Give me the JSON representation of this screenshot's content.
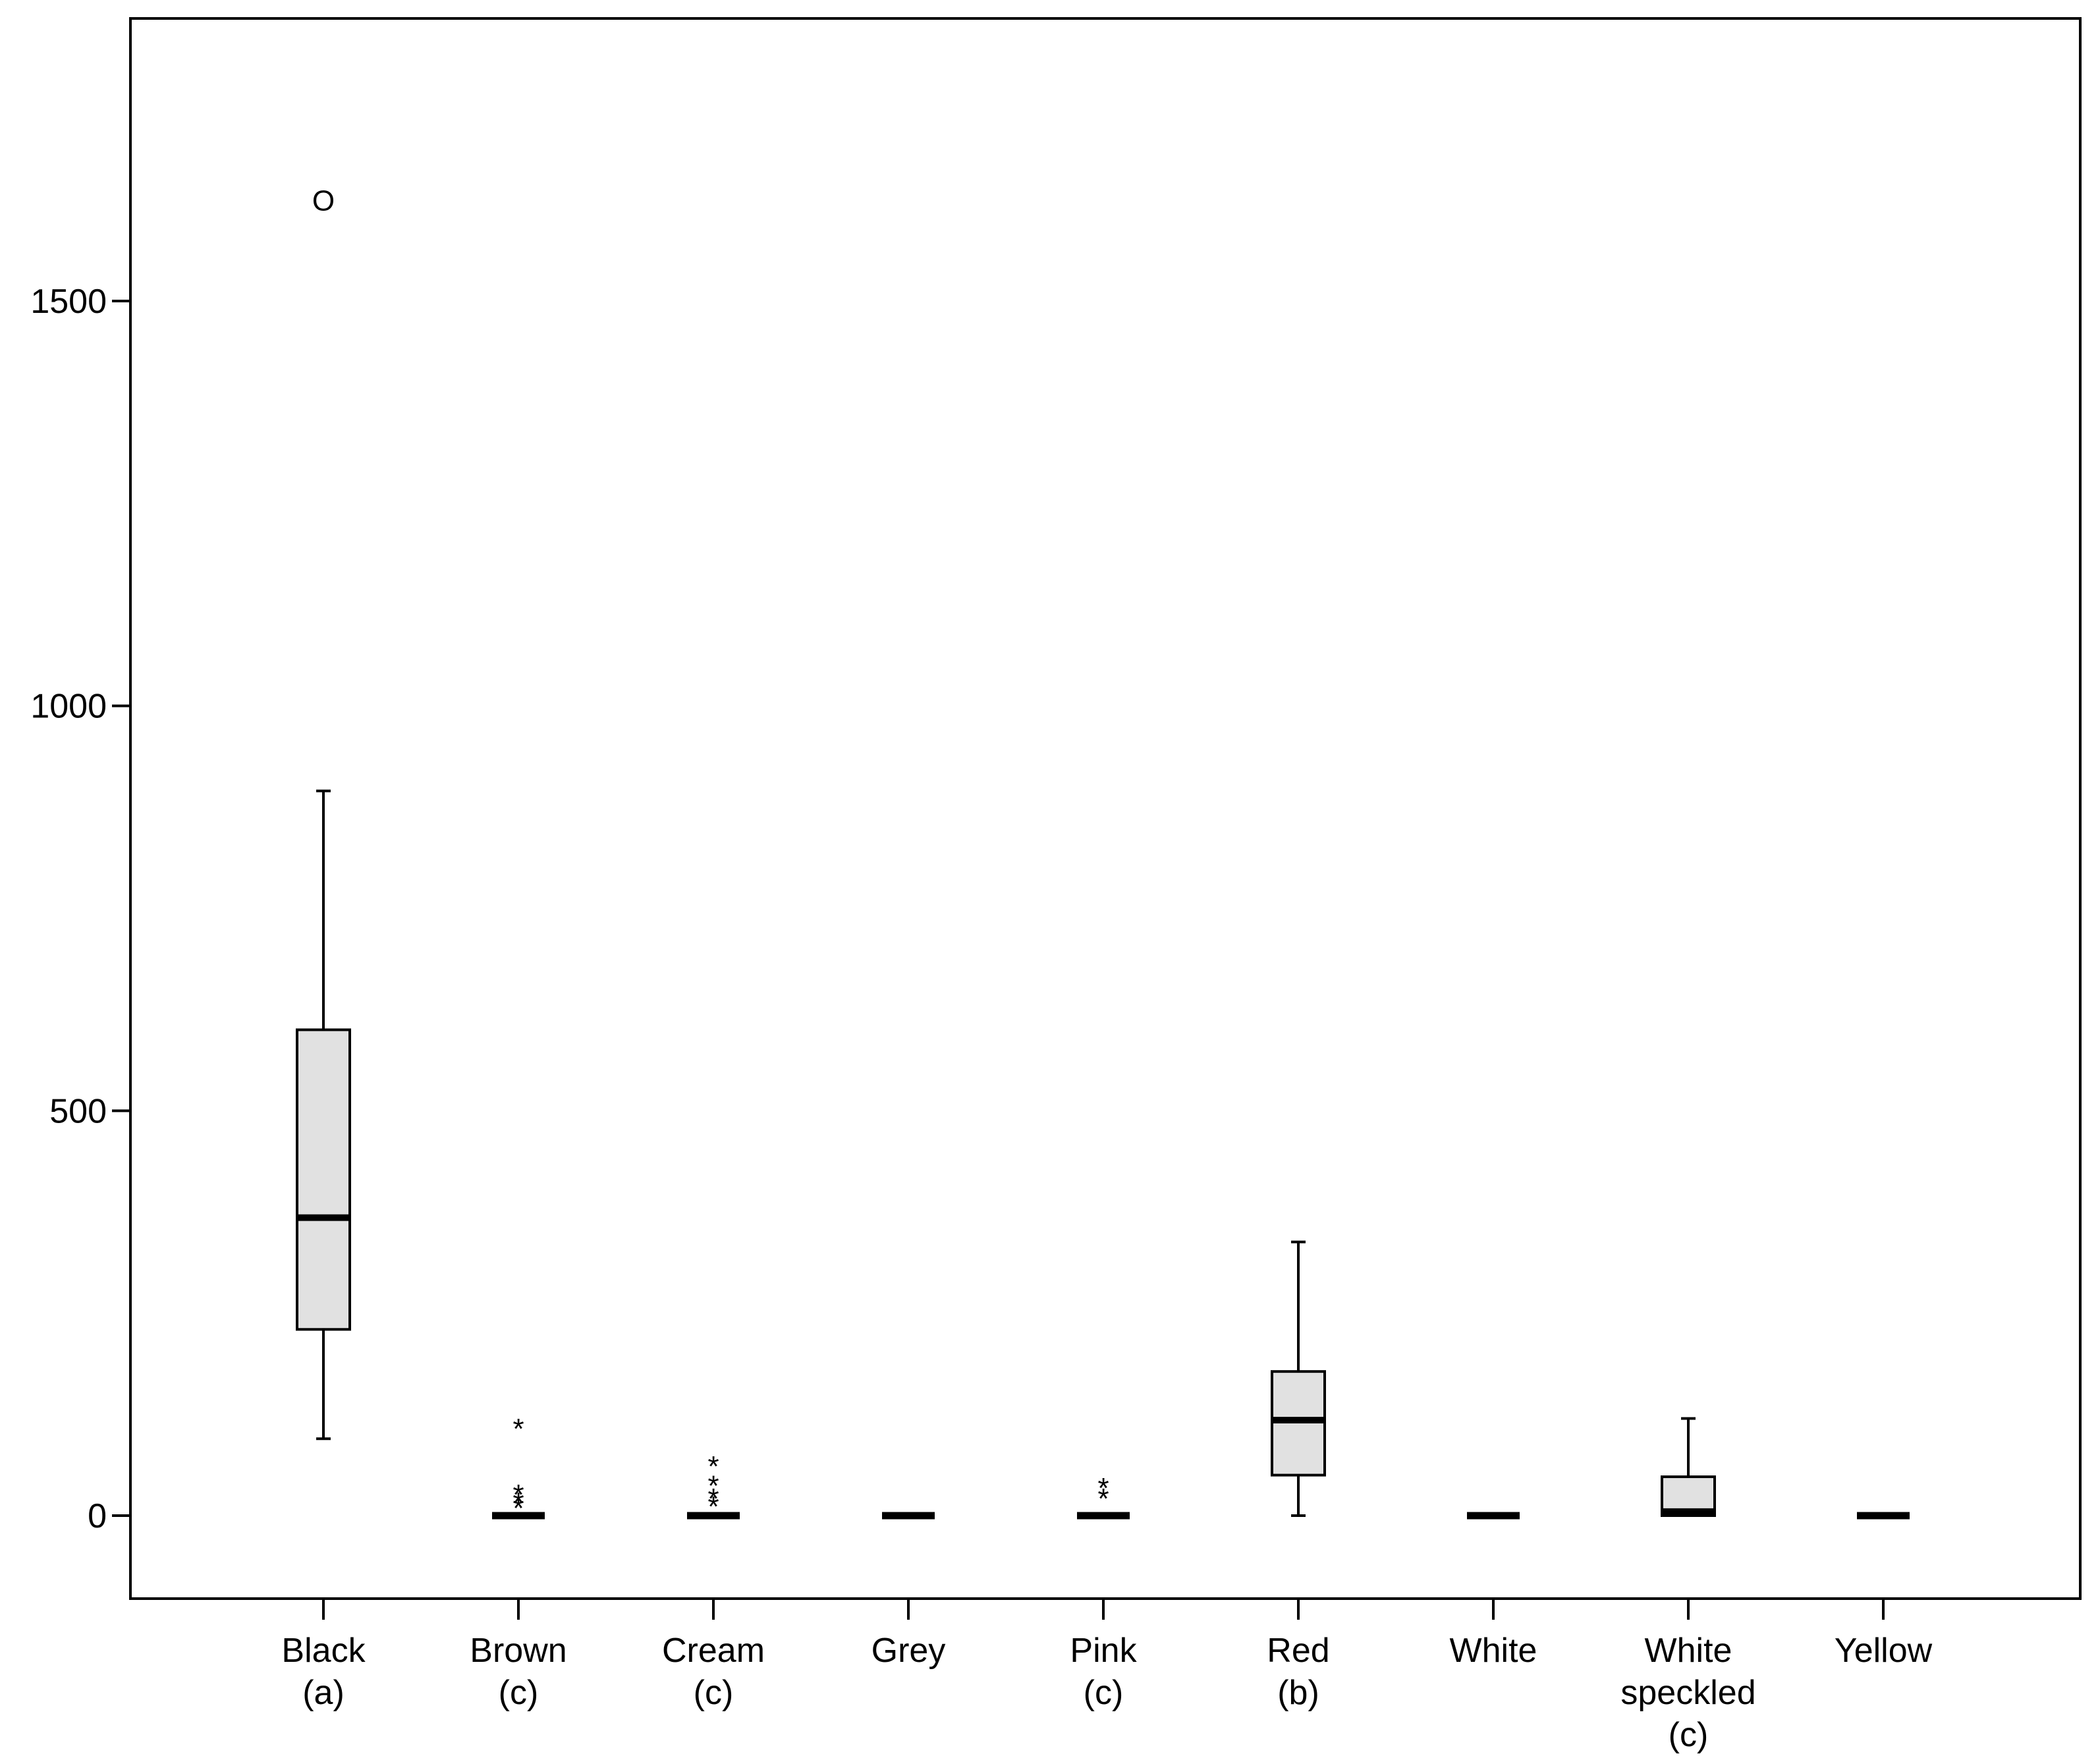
{
  "chart_data": {
    "type": "box",
    "title": "",
    "xlabel": "",
    "ylabel": "",
    "ylim": [
      -100,
      1850
    ],
    "yticks": [
      0,
      500,
      1000,
      1500
    ],
    "grid": false,
    "box_fill": "#e1e1e1",
    "categories": [
      {
        "label_lines": [
          "Black",
          "(a)"
        ],
        "q1": 230,
        "median": 368,
        "q3": 600,
        "whisker_low": 95,
        "whisker_high": 895,
        "outliers": [
          {
            "value": 1625,
            "marker": "O"
          }
        ]
      },
      {
        "label_lines": [
          "Brown",
          "(c)"
        ],
        "q1": 0,
        "median": 0,
        "q3": 0,
        "whisker_low": 0,
        "whisker_high": 0,
        "outliers": [
          {
            "value": 108,
            "marker": "*"
          },
          {
            "value": 27,
            "marker": "*"
          },
          {
            "value": 17,
            "marker": "*"
          },
          {
            "value": 10,
            "marker": "*"
          }
        ]
      },
      {
        "label_lines": [
          "Cream",
          "(c)"
        ],
        "q1": 0,
        "median": 0,
        "q3": 0,
        "whisker_low": 0,
        "whisker_high": 0,
        "outliers": [
          {
            "value": 62,
            "marker": "*"
          },
          {
            "value": 38,
            "marker": "*"
          },
          {
            "value": 22,
            "marker": "*"
          },
          {
            "value": 12,
            "marker": "*"
          }
        ]
      },
      {
        "label_lines": [
          "Grey"
        ],
        "q1": 0,
        "median": 0,
        "q3": 0,
        "whisker_low": 0,
        "whisker_high": 0,
        "outliers": []
      },
      {
        "label_lines": [
          "Pink",
          "(c)"
        ],
        "q1": 0,
        "median": 0,
        "q3": 0,
        "whisker_low": 0,
        "whisker_high": 0,
        "outliers": [
          {
            "value": 35,
            "marker": "*"
          },
          {
            "value": 22,
            "marker": "*"
          }
        ]
      },
      {
        "label_lines": [
          "Red",
          "(b)"
        ],
        "q1": 50,
        "median": 118,
        "q3": 178,
        "whisker_low": 0,
        "whisker_high": 338,
        "outliers": []
      },
      {
        "label_lines": [
          "White"
        ],
        "q1": 0,
        "median": 0,
        "q3": 0,
        "whisker_low": 0,
        "whisker_high": 0,
        "outliers": []
      },
      {
        "label_lines": [
          "White",
          "speckled",
          "(c)"
        ],
        "q1": 0,
        "median": 5,
        "q3": 48,
        "whisker_low": 0,
        "whisker_high": 120,
        "outliers": []
      },
      {
        "label_lines": [
          "Yellow"
        ],
        "q1": 0,
        "median": 0,
        "q3": 0,
        "whisker_low": 0,
        "whisker_high": 0,
        "outliers": []
      }
    ]
  }
}
